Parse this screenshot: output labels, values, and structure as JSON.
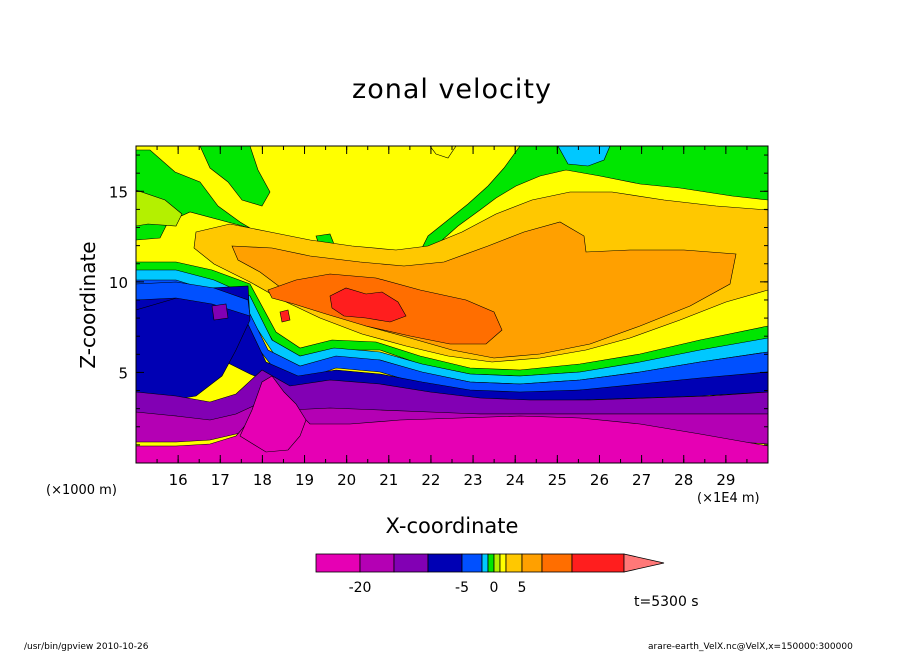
{
  "chart_data": {
    "type": "heatmap",
    "title": "zonal velocity",
    "xlabel": "X-coordinate",
    "ylabel": "Z-coordinate",
    "x_unit": "(×1E4 m)",
    "y_unit": "(×1000 m)",
    "x_ticks": [
      "16",
      "17",
      "18",
      "19",
      "20",
      "21",
      "22",
      "23",
      "24",
      "25",
      "26",
      "27",
      "28",
      "29"
    ],
    "y_ticks": [
      "5",
      "10",
      "15"
    ],
    "xlim": [
      15.0,
      30.0
    ],
    "ylim": [
      0,
      17.5
    ],
    "colorbar": {
      "tick_labels": [
        "-20",
        "-5",
        "0",
        "5"
      ],
      "levels": [
        -25,
        -20,
        -15,
        -10,
        -5,
        -2,
        -1,
        0,
        1,
        2,
        5,
        10,
        15,
        20
      ],
      "colors": [
        "#e600b4",
        "#b400b4",
        "#8200b4",
        "#0000b4",
        "#0050ff",
        "#00c8ff",
        "#00e600",
        "#b4f000",
        "#ffff00",
        "#ffc800",
        "#ffa000",
        "#ff6e00",
        "#ff1e1e",
        "#ff7878"
      ]
    },
    "annotation": "t=5300 s"
  },
  "footer": {
    "left": "/usr/bin/gpview   2010-10-26",
    "right": "arare-earth_VelX.nc@VelX,x=150000:300000"
  }
}
